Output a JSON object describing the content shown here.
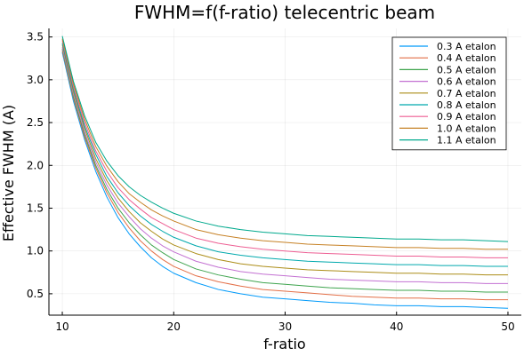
{
  "chart_data": {
    "type": "line",
    "title": "FWHM=f(f-ratio) telecentric beam",
    "xlabel": "f-ratio",
    "ylabel": "Effective FWHM (A)",
    "xlim": [
      8.8,
      51.2
    ],
    "ylim": [
      0.25,
      3.6
    ],
    "xticks": [
      10,
      20,
      30,
      40,
      50
    ],
    "xtick_labels": [
      "10",
      "20",
      "30",
      "40",
      "50"
    ],
    "yticks": [
      0.5,
      1.0,
      1.5,
      2.0,
      2.5,
      3.0,
      3.5
    ],
    "ytick_labels": [
      "0.5",
      "1.0",
      "1.5",
      "2.0",
      "2.5",
      "3.0",
      "3.5"
    ],
    "grid": true,
    "legend_position": "top-right",
    "x": [
      10,
      11,
      12,
      13,
      14,
      15,
      16,
      17,
      18,
      19,
      20,
      22,
      24,
      26,
      28,
      30,
      32,
      34,
      36,
      38,
      40,
      42,
      44,
      46,
      48,
      50
    ],
    "series": [
      {
        "name": "0.3 A etalon",
        "color": "#009AFA",
        "values": [
          3.32,
          2.75,
          2.3,
          1.93,
          1.63,
          1.39,
          1.2,
          1.05,
          0.92,
          0.82,
          0.74,
          0.63,
          0.55,
          0.5,
          0.46,
          0.44,
          0.42,
          0.4,
          0.39,
          0.37,
          0.36,
          0.36,
          0.35,
          0.35,
          0.34,
          0.33
        ]
      },
      {
        "name": "0.4 A etalon",
        "color": "#E36F47",
        "values": [
          3.34,
          2.78,
          2.33,
          1.97,
          1.68,
          1.45,
          1.27,
          1.12,
          1.0,
          0.9,
          0.82,
          0.71,
          0.64,
          0.59,
          0.55,
          0.53,
          0.51,
          0.49,
          0.47,
          0.46,
          0.45,
          0.45,
          0.44,
          0.44,
          0.43,
          0.43
        ]
      },
      {
        "name": "0.5 A etalon",
        "color": "#3EA44E",
        "values": [
          3.36,
          2.8,
          2.36,
          2.0,
          1.72,
          1.5,
          1.33,
          1.19,
          1.07,
          0.98,
          0.9,
          0.79,
          0.72,
          0.67,
          0.63,
          0.61,
          0.59,
          0.57,
          0.56,
          0.55,
          0.54,
          0.54,
          0.53,
          0.53,
          0.52,
          0.52
        ]
      },
      {
        "name": "0.6 A etalon",
        "color": "#C371D2",
        "values": [
          3.38,
          2.83,
          2.39,
          2.04,
          1.77,
          1.56,
          1.4,
          1.26,
          1.15,
          1.06,
          0.99,
          0.88,
          0.81,
          0.76,
          0.73,
          0.71,
          0.69,
          0.67,
          0.66,
          0.65,
          0.64,
          0.64,
          0.63,
          0.63,
          0.62,
          0.62
        ]
      },
      {
        "name": "0.7 A etalon",
        "color": "#AC8D18",
        "values": [
          3.41,
          2.86,
          2.43,
          2.08,
          1.82,
          1.62,
          1.46,
          1.33,
          1.23,
          1.14,
          1.07,
          0.97,
          0.9,
          0.85,
          0.82,
          0.8,
          0.78,
          0.77,
          0.76,
          0.75,
          0.74,
          0.74,
          0.73,
          0.73,
          0.72,
          0.72
        ]
      },
      {
        "name": "0.8 A etalon",
        "color": "#00A9AD",
        "values": [
          3.43,
          2.89,
          2.46,
          2.13,
          1.87,
          1.68,
          1.53,
          1.41,
          1.31,
          1.23,
          1.16,
          1.06,
          0.99,
          0.95,
          0.92,
          0.9,
          0.88,
          0.87,
          0.86,
          0.85,
          0.84,
          0.84,
          0.83,
          0.83,
          0.82,
          0.82
        ]
      },
      {
        "name": "0.9 A etalon",
        "color": "#ED5E93",
        "values": [
          3.46,
          2.92,
          2.5,
          2.17,
          1.93,
          1.74,
          1.6,
          1.49,
          1.39,
          1.32,
          1.25,
          1.15,
          1.09,
          1.05,
          1.02,
          1.0,
          0.98,
          0.97,
          0.96,
          0.95,
          0.94,
          0.94,
          0.93,
          0.93,
          0.92,
          0.92
        ]
      },
      {
        "name": "1.0 A etalon",
        "color": "#C68125",
        "values": [
          3.48,
          2.95,
          2.54,
          2.22,
          1.99,
          1.81,
          1.67,
          1.57,
          1.48,
          1.41,
          1.35,
          1.25,
          1.19,
          1.15,
          1.12,
          1.1,
          1.08,
          1.07,
          1.06,
          1.05,
          1.04,
          1.04,
          1.03,
          1.03,
          1.02,
          1.02
        ]
      },
      {
        "name": "1.1 A etalon",
        "color": "#00A98D",
        "values": [
          3.51,
          2.98,
          2.58,
          2.27,
          2.05,
          1.88,
          1.75,
          1.65,
          1.57,
          1.5,
          1.44,
          1.35,
          1.29,
          1.25,
          1.22,
          1.2,
          1.18,
          1.17,
          1.16,
          1.15,
          1.14,
          1.14,
          1.13,
          1.13,
          1.12,
          1.11
        ]
      }
    ]
  }
}
